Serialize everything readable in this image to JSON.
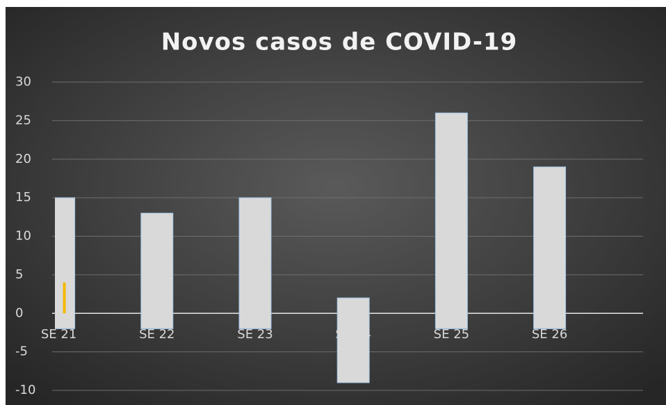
{
  "chart_data": {
    "type": "floating-bar",
    "title": "Novos casos de COVID-19",
    "categories": [
      "SE 21",
      "SE 22",
      "SE 23",
      "SE 24",
      "SE 25",
      "SE 26"
    ],
    "values": [
      15,
      13,
      15,
      2,
      26,
      19
    ],
    "bases": [
      -2,
      -2,
      -2,
      -9,
      -2,
      -2
    ],
    "color": "#d9d9d9",
    "highlight": {
      "color": "#f5b800",
      "values": [
        4,
        null,
        null,
        null,
        null,
        null
      ]
    },
    "ylim": [
      -10,
      30
    ],
    "yticks": [
      -10,
      -5,
      0,
      5,
      10,
      15,
      20,
      25,
      30
    ],
    "grid": true
  }
}
